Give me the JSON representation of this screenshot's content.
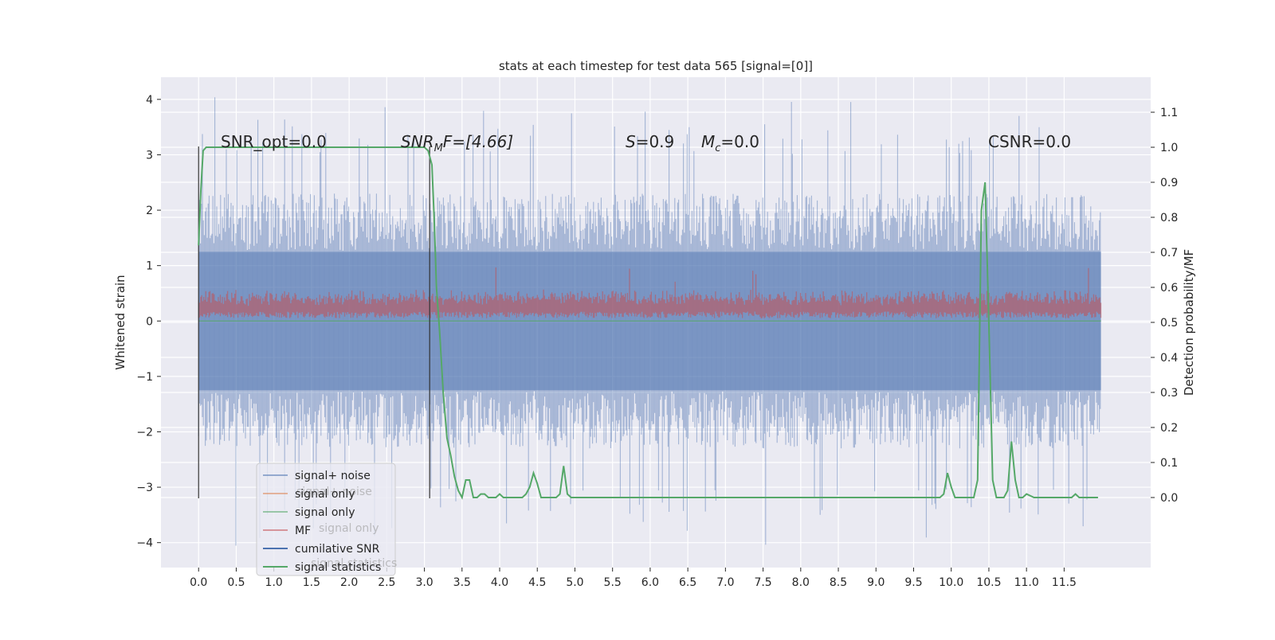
{
  "chart_data": {
    "type": "line",
    "title": "stats at each timestep for test data 565 [signal=[0]]",
    "xlabel": "",
    "ylabel": "Whitened strain",
    "ylabel_right": "Detection probability/MF",
    "xlim": [
      -0.5,
      12.65
    ],
    "ylim": [
      -4.45,
      4.4
    ],
    "ylim_right": [
      -0.2,
      1.2
    ],
    "x_ticks": [
      0.0,
      0.5,
      1.0,
      1.5,
      2.0,
      2.5,
      3.0,
      3.5,
      4.0,
      4.5,
      5.0,
      5.5,
      6.0,
      6.5,
      7.0,
      7.5,
      8.0,
      8.5,
      9.0,
      9.5,
      10.0,
      10.5,
      11.0,
      11.5
    ],
    "x_tick_labels": [
      "0.0",
      "0.5",
      "1.0",
      "1.5",
      "2.0",
      "2.5",
      "3.0",
      "3.5",
      "4.0",
      "4.5",
      "5.0",
      "5.5",
      "6.0",
      "6.5",
      "7.0",
      "7.5",
      "8.0",
      "8.5",
      "9.0",
      "9.5",
      "10.0",
      "10.5",
      "11.0",
      "11.5"
    ],
    "y_ticks": [
      4,
      3,
      2,
      1,
      0,
      -1,
      -2,
      -3,
      -4
    ],
    "y_tick_labels": [
      "4",
      "3",
      "2",
      "1",
      "0",
      "−1",
      "−2",
      "−3",
      "−4"
    ],
    "y_ticks_right": [
      1.1,
      1.0,
      0.9,
      0.8,
      0.7,
      0.6,
      0.5,
      0.4,
      0.3,
      0.2,
      0.1,
      0.0
    ],
    "y_tick_labels_right": [
      "1.1",
      "1.0",
      "0.9",
      "0.8",
      "0.7",
      "0.6",
      "0.5",
      "0.4",
      "0.3",
      "0.2",
      "0.1",
      "0.0"
    ],
    "grid": true,
    "legend_position": "lower-left",
    "colors": {
      "signal_noise": "#4c72b0",
      "signal_only_1": "#dd8452",
      "signal_only_2": "#55a868",
      "mf": "#c44e52",
      "cumulative_snr": "#4c72b0",
      "signal_statistics": "#55a868",
      "background": "#eaeaf2",
      "grid": "#ffffff"
    },
    "legend": [
      {
        "label": "signal+ noise",
        "color": "#4c72b0",
        "alpha": 0.55
      },
      {
        "label": "signal only",
        "color": "#dd8452",
        "alpha": 0.55
      },
      {
        "label": "signal only",
        "color": "#55a868",
        "alpha": 0.55
      },
      {
        "label": "MF",
        "color": "#c44e52",
        "alpha": 0.55
      },
      {
        "label": "cumilative SNR",
        "color": "#4c72b0",
        "alpha": 1
      },
      {
        "label": "signal statistics",
        "color": "#55a868",
        "alpha": 1
      }
    ],
    "ghost_legend": [
      "signal+ noise",
      "signal only",
      "signal statistics"
    ],
    "annotations": {
      "snr_opt": "SNR_opt=0.0",
      "snr_mf_sym": "SNR",
      "snr_mf_sub": "M",
      "snr_mf_rest": "F=[4.66]",
      "s_sym": "S",
      "s_rest": "=0.9",
      "mc_sym": "M",
      "mc_sub": "c",
      "mc_rest": "=0.0",
      "csnr": "CSNR=0.0"
    },
    "noise_band": {
      "x_start": 0.0,
      "x_end": 11.99,
      "typical_low": -2.3,
      "typical_high": 2.3,
      "peak_low": -4.1,
      "peak_high": 4.05
    },
    "mf_band": {
      "x_start": 0.0,
      "x_end": 11.99,
      "low": 0.0,
      "typical_high": 0.45,
      "peak_high": 1.0
    },
    "vertical_markers": [
      {
        "x": 0.0,
        "y_low": -3.2,
        "y_high": 3.15
      },
      {
        "x": 3.07,
        "y_low": -3.2,
        "y_high": 3.15
      }
    ],
    "series": [
      {
        "name": "signal statistics",
        "axis": "right",
        "x": [
          0.0,
          0.03,
          0.06,
          0.1,
          0.2,
          0.4,
          0.8,
          1.2,
          1.6,
          2.0,
          2.4,
          2.8,
          3.0,
          3.05,
          3.1,
          3.13,
          3.16,
          3.2,
          3.25,
          3.3,
          3.35,
          3.4,
          3.45,
          3.5,
          3.55,
          3.6,
          3.65,
          3.7,
          3.75,
          3.8,
          3.85,
          3.9,
          3.95,
          4.0,
          4.05,
          4.1,
          4.2,
          4.3,
          4.35,
          4.4,
          4.45,
          4.5,
          4.55,
          4.6,
          4.7,
          4.75,
          4.8,
          4.85,
          4.9,
          4.95,
          5.0,
          5.5,
          6.0,
          6.3,
          6.5,
          7.0,
          8.0,
          8.8,
          9.0,
          9.5,
          9.85,
          9.9,
          9.95,
          10.0,
          10.05,
          10.1,
          10.15,
          10.2,
          10.25,
          10.3,
          10.35,
          10.4,
          10.45,
          10.5,
          10.55,
          10.6,
          10.65,
          10.7,
          10.75,
          10.8,
          10.85,
          10.9,
          10.95,
          11.0,
          11.1,
          11.2,
          11.3,
          11.5,
          11.6,
          11.65,
          11.7,
          11.8,
          11.95
        ],
        "values": [
          0.72,
          0.88,
          0.99,
          1.0,
          1.0,
          1.0,
          1.0,
          1.0,
          1.0,
          1.0,
          1.0,
          1.0,
          1.0,
          0.99,
          0.95,
          0.8,
          0.6,
          0.48,
          0.3,
          0.17,
          0.12,
          0.06,
          0.02,
          0.0,
          0.05,
          0.05,
          0.0,
          0.0,
          0.01,
          0.01,
          0.0,
          0.0,
          0.0,
          0.01,
          0.0,
          0.0,
          0.0,
          0.0,
          0.01,
          0.03,
          0.07,
          0.04,
          0.0,
          0.0,
          0.0,
          0.0,
          0.01,
          0.09,
          0.01,
          0.0,
          0.0,
          0.0,
          0.0,
          0.0,
          0.0,
          0.0,
          0.0,
          0.0,
          0.0,
          0.0,
          0.0,
          0.01,
          0.07,
          0.03,
          0.0,
          0.0,
          0.0,
          0.0,
          0.0,
          0.0,
          0.05,
          0.82,
          0.9,
          0.5,
          0.05,
          0.0,
          0.0,
          0.0,
          0.02,
          0.16,
          0.05,
          0.0,
          0.0,
          0.01,
          0.0,
          0.0,
          0.0,
          0.0,
          0.0,
          0.01,
          0.0,
          0.0,
          0.0
        ]
      }
    ]
  }
}
